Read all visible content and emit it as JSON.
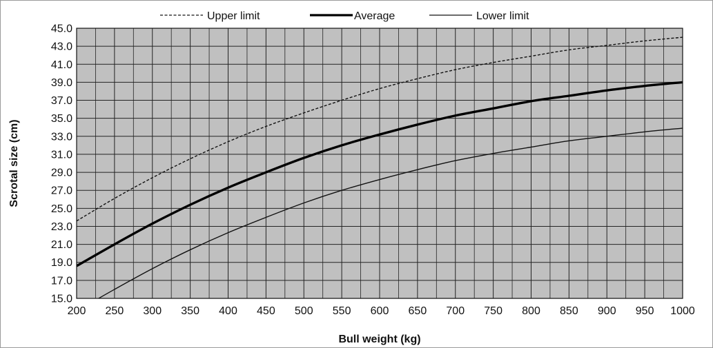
{
  "chart_data": {
    "type": "line",
    "title": "",
    "xlabel": "Bull weight (kg)",
    "ylabel": "Scrotal size (cm)",
    "xlim": [
      200,
      1000
    ],
    "ylim": [
      15,
      45
    ],
    "xticks": [
      200,
      250,
      300,
      350,
      400,
      450,
      500,
      550,
      600,
      650,
      700,
      750,
      800,
      850,
      900,
      950,
      1000
    ],
    "xtick_labels": [
      "200",
      "250",
      "300",
      "350",
      "400",
      "450",
      "500",
      "550",
      "600",
      "650",
      "700",
      "750",
      "800",
      "850",
      "900",
      "950",
      "1000"
    ],
    "yticks": [
      15,
      17,
      19,
      21,
      23,
      25,
      27,
      29,
      31,
      33,
      35,
      37,
      39,
      41,
      43,
      45
    ],
    "ytick_labels": [
      "15.0",
      "17.0",
      "19.0",
      "21.0",
      "23.0",
      "25.0",
      "27.0",
      "29.0",
      "31.0",
      "33.0",
      "35.0",
      "37.0",
      "39.0",
      "41.0",
      "43.0",
      "45.0"
    ],
    "minor_x_gridlines": true,
    "grid": true,
    "plot_background": "#c0c0c0",
    "grid_color": "#222222",
    "legend_position": "top",
    "x": [
      200,
      250,
      300,
      350,
      400,
      450,
      500,
      550,
      600,
      650,
      700,
      750,
      800,
      850,
      900,
      950,
      1000
    ],
    "series": [
      {
        "name": "Upper limit",
        "style": "dashed",
        "color": "#111111",
        "values": [
          23.6,
          26.1,
          28.4,
          30.5,
          32.4,
          34.1,
          35.6,
          37.0,
          38.3,
          39.4,
          40.4,
          41.2,
          41.9,
          42.6,
          43.1,
          43.6,
          44.0
        ]
      },
      {
        "name": "Average",
        "style": "thick",
        "color": "#000000",
        "values": [
          18.6,
          21.0,
          23.3,
          25.4,
          27.3,
          29.0,
          30.6,
          32.0,
          33.2,
          34.3,
          35.3,
          36.1,
          36.9,
          37.5,
          38.1,
          38.6,
          39.0
        ]
      },
      {
        "name": "Lower limit",
        "style": "thin",
        "color": "#111111",
        "values": [
          13.6,
          16.0,
          18.3,
          20.4,
          22.3,
          24.0,
          25.6,
          27.0,
          28.2,
          29.3,
          30.3,
          31.1,
          31.8,
          32.5,
          33.0,
          33.5,
          33.9
        ]
      }
    ]
  }
}
